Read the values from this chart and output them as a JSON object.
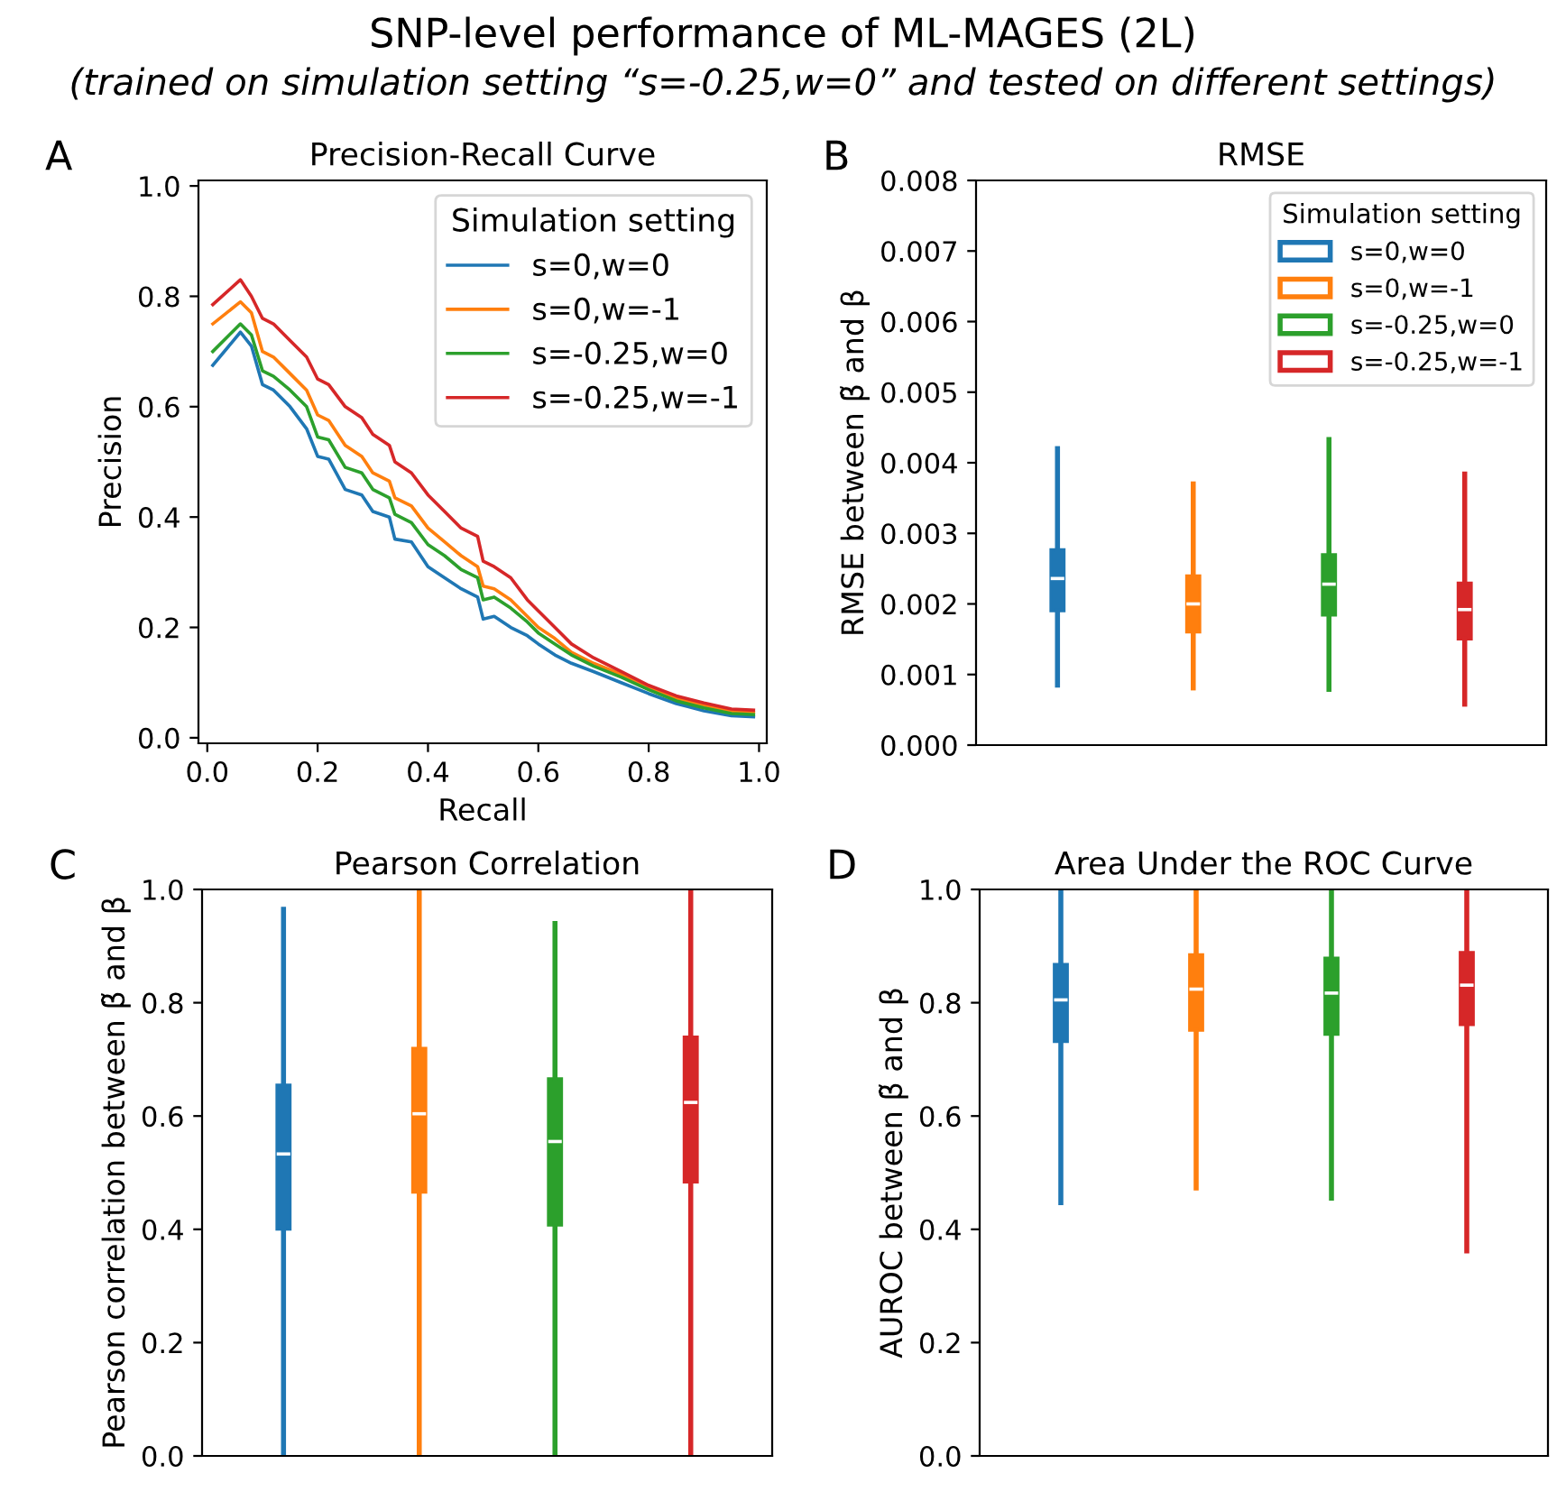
{
  "chart_data": [
    {
      "type": "line",
      "title": "Precision-Recall Curve",
      "xlabel": "Recall",
      "ylabel": "Precision",
      "legend_title": "Simulation setting",
      "legend": "top right",
      "grid": false,
      "annotations": [
        "A",
        "SNP-level performance of ML-MAGES (2L)",
        "(trained on simulation setting “s=-0.25,w=0” and tested on different settings)"
      ],
      "xlim": [
        -0.016,
        1.014
      ],
      "ylim": [
        -0.01,
        1.01
      ],
      "xticks": [
        {
          "value": 0,
          "label": "0.0"
        },
        {
          "value": 0.2,
          "label": "0.2"
        },
        {
          "value": 0.4,
          "label": "0.4"
        },
        {
          "value": 0.6,
          "label": "0.6"
        },
        {
          "value": 0.8,
          "label": "0.8"
        },
        {
          "value": 1,
          "label": "1.0"
        }
      ],
      "yticks": [
        {
          "value": 0,
          "label": "0.0"
        },
        {
          "value": 0.2,
          "label": "0.2"
        },
        {
          "value": 0.4,
          "label": "0.4"
        },
        {
          "value": 0.6,
          "label": "0.6"
        },
        {
          "value": 0.8,
          "label": "0.8"
        },
        {
          "value": 1,
          "label": "1.0"
        }
      ],
      "x": [
        0.01,
        0.06,
        0.08,
        0.1,
        0.12,
        0.15,
        0.18,
        0.2,
        0.22,
        0.25,
        0.28,
        0.3,
        0.33,
        0.34,
        0.37,
        0.4,
        0.43,
        0.46,
        0.49,
        0.5,
        0.52,
        0.55,
        0.58,
        0.6,
        0.63,
        0.66,
        0.7,
        0.75,
        0.8,
        0.85,
        0.9,
        0.95,
        0.99
      ],
      "series": [
        {
          "name": "s=0,w=0",
          "color": "#1f77b4",
          "values": [
            0.675,
            0.735,
            0.71,
            0.64,
            0.63,
            0.6,
            0.56,
            0.51,
            0.505,
            0.45,
            0.44,
            0.41,
            0.4,
            0.36,
            0.355,
            0.31,
            0.29,
            0.27,
            0.255,
            0.215,
            0.22,
            0.2,
            0.185,
            0.17,
            0.15,
            0.135,
            0.12,
            0.1,
            0.08,
            0.062,
            0.049,
            0.04,
            0.038
          ]
        },
        {
          "name": "s=0,w=-1",
          "color": "#ff7f0e",
          "values": [
            0.75,
            0.79,
            0.77,
            0.7,
            0.69,
            0.66,
            0.63,
            0.585,
            0.575,
            0.53,
            0.51,
            0.48,
            0.465,
            0.435,
            0.42,
            0.38,
            0.355,
            0.33,
            0.31,
            0.275,
            0.27,
            0.25,
            0.22,
            0.2,
            0.18,
            0.155,
            0.135,
            0.115,
            0.09,
            0.071,
            0.059,
            0.048,
            0.046
          ]
        },
        {
          "name": "s=-0.25,w=0",
          "color": "#2ca02c",
          "values": [
            0.7,
            0.75,
            0.73,
            0.665,
            0.655,
            0.63,
            0.6,
            0.545,
            0.54,
            0.49,
            0.48,
            0.45,
            0.435,
            0.405,
            0.39,
            0.35,
            0.33,
            0.305,
            0.29,
            0.25,
            0.255,
            0.235,
            0.21,
            0.19,
            0.17,
            0.15,
            0.13,
            0.11,
            0.087,
            0.067,
            0.054,
            0.044,
            0.042
          ]
        },
        {
          "name": "s=-0.25,w=-1",
          "color": "#d62728",
          "values": [
            0.785,
            0.83,
            0.8,
            0.76,
            0.75,
            0.72,
            0.69,
            0.65,
            0.64,
            0.6,
            0.58,
            0.55,
            0.53,
            0.5,
            0.48,
            0.44,
            0.41,
            0.38,
            0.365,
            0.32,
            0.31,
            0.29,
            0.25,
            0.23,
            0.2,
            0.17,
            0.145,
            0.12,
            0.095,
            0.076,
            0.063,
            0.052,
            0.05
          ]
        }
      ]
    },
    {
      "type": "box",
      "title": "RMSE",
      "ylabel": "RMSE between β̃ and β",
      "legend_title": "Simulation setting",
      "legend": "top right",
      "grid": false,
      "tick_labels": "y",
      "annotations": [
        "B"
      ],
      "categories": [
        null,
        null,
        null,
        null
      ],
      "ylim": [
        0,
        0.008
      ],
      "yticks": [
        {
          "value": 0,
          "label": "0.000"
        },
        {
          "value": 0.001,
          "label": "0.001"
        },
        {
          "value": 0.002,
          "label": "0.002"
        },
        {
          "value": 0.003,
          "label": "0.003"
        },
        {
          "value": 0.004,
          "label": "0.004"
        },
        {
          "value": 0.005,
          "label": "0.005"
        },
        {
          "value": 0.006,
          "label": "0.006"
        },
        {
          "value": 0.007,
          "label": "0.007"
        },
        {
          "value": 0.008,
          "label": "0.008"
        }
      ],
      "series": [
        {
          "name": "s=0,w=0",
          "color": "#1f77b4",
          "boxes": [
            {
              "low": 0.00085,
              "q1": 0.0019,
              "median": 0.00236,
              "q3": 0.00277,
              "high": 0.0042
            },
            null,
            null,
            null
          ]
        },
        {
          "name": "s=0,w=-1",
          "color": "#ff7f0e",
          "boxes": [
            null,
            {
              "low": 0.00081,
              "q1": 0.0016,
              "median": 0.002,
              "q3": 0.0024,
              "high": 0.0037
            },
            null,
            null
          ]
        },
        {
          "name": "s=-0.25,w=0",
          "color": "#2ca02c",
          "boxes": [
            null,
            null,
            {
              "low": 0.00079,
              "q1": 0.00184,
              "median": 0.00228,
              "q3": 0.0027,
              "high": 0.00433
            },
            null
          ]
        },
        {
          "name": "s=-0.25,w=-1",
          "color": "#d62728",
          "boxes": [
            null,
            null,
            null,
            {
              "low": 0.00058,
              "q1": 0.0015,
              "median": 0.00192,
              "q3": 0.0023,
              "high": 0.00384
            }
          ]
        }
      ]
    },
    {
      "type": "box",
      "title": "Pearson Correlation",
      "ylabel": "Pearson correlation between β̃ and β",
      "grid": false,
      "tick_labels": "y",
      "annotations": [
        "C"
      ],
      "categories": [
        null,
        null,
        null,
        null
      ],
      "ylim": [
        0,
        1
      ],
      "yticks": [
        {
          "value": 0,
          "label": "0.0"
        },
        {
          "value": 0.2,
          "label": "0.2"
        },
        {
          "value": 0.4,
          "label": "0.4"
        },
        {
          "value": 0.6,
          "label": "0.6"
        },
        {
          "value": 0.8,
          "label": "0.8"
        },
        {
          "value": 1,
          "label": "1.0"
        }
      ],
      "colors": [
        "#1f77b4",
        "#ff7f0e",
        "#2ca02c",
        "#d62728"
      ],
      "boxes": [
        {
          "low": 0,
          "q1": 0.4,
          "median": 0.533,
          "q3": 0.655,
          "high": 0.965
        },
        {
          "low": 0,
          "q1": 0.465,
          "median": 0.604,
          "q3": 0.72,
          "high": 0.995
        },
        {
          "low": 0,
          "q1": 0.407,
          "median": 0.555,
          "q3": 0.666,
          "high": 0.94
        },
        {
          "low": 0,
          "q1": 0.483,
          "median": 0.624,
          "q3": 0.74,
          "high": 1.0
        }
      ]
    },
    {
      "type": "box",
      "title": "Area Under the ROC Curve",
      "ylabel": "AUROC between β̃ and β",
      "grid": false,
      "tick_labels": "y",
      "annotations": [
        "D"
      ],
      "categories": [
        null,
        null,
        null,
        null
      ],
      "ylim": [
        0,
        1
      ],
      "yticks": [
        {
          "value": 0,
          "label": "0.0"
        },
        {
          "value": 0.2,
          "label": "0.2"
        },
        {
          "value": 0.4,
          "label": "0.4"
        },
        {
          "value": 0.6,
          "label": "0.6"
        },
        {
          "value": 0.8,
          "label": "0.8"
        },
        {
          "value": 1,
          "label": "1.0"
        }
      ],
      "colors": [
        "#1f77b4",
        "#ff7f0e",
        "#2ca02c",
        "#d62728"
      ],
      "boxes": [
        {
          "low": 0.447,
          "q1": 0.731,
          "median": 0.805,
          "q3": 0.868,
          "high": 1.0
        },
        {
          "low": 0.473,
          "q1": 0.751,
          "median": 0.824,
          "q3": 0.885,
          "high": 1.0
        },
        {
          "low": 0.455,
          "q1": 0.744,
          "median": 0.817,
          "q3": 0.879,
          "high": 1.0
        },
        {
          "low": 0.362,
          "q1": 0.761,
          "median": 0.831,
          "q3": 0.889,
          "high": 1.0
        }
      ]
    }
  ]
}
